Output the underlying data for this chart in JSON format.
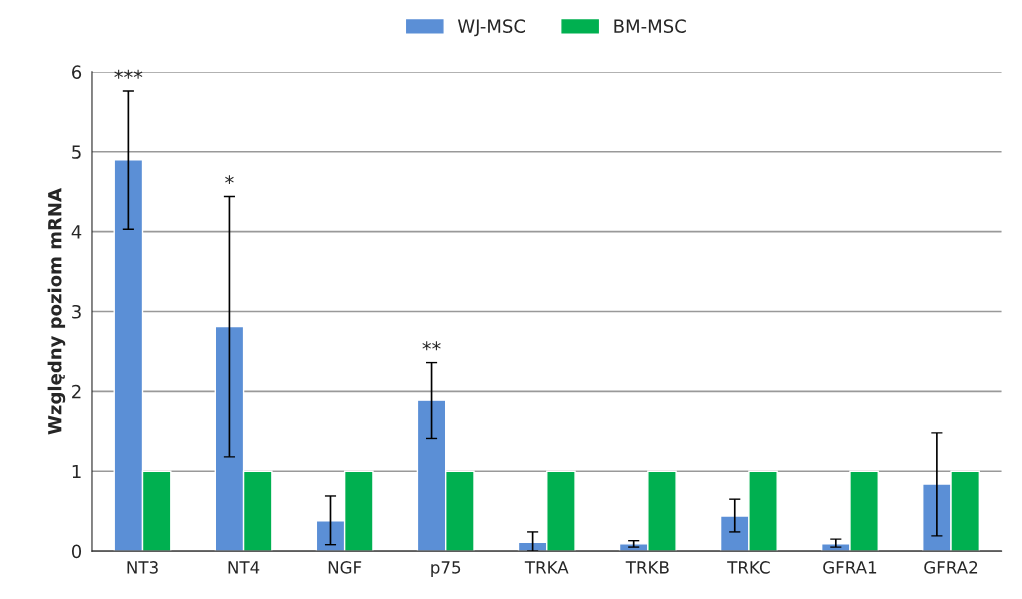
{
  "chart_data": {
    "type": "bar",
    "ylabel": "Względny poziom mRNA",
    "categories": [
      "NT3",
      "NT4",
      "NGF",
      "p75",
      "TRKA",
      "TRKB",
      "TRKC",
      "GFRA1",
      "GFRA2"
    ],
    "series": [
      {
        "name": "WJ-MSC",
        "color": "#5b8fd6",
        "values": [
          4.9,
          2.81,
          0.38,
          1.89,
          0.11,
          0.09,
          0.44,
          0.09,
          0.84
        ],
        "errors": [
          [
            4.03,
            5.76
          ],
          [
            1.18,
            4.44
          ],
          [
            0.08,
            0.69
          ],
          [
            1.41,
            2.36
          ],
          [
            0.0,
            0.24
          ],
          [
            0.05,
            0.13
          ],
          [
            0.24,
            0.65
          ],
          [
            0.05,
            0.15
          ],
          [
            0.19,
            1.48
          ]
        ]
      },
      {
        "name": "BM-MSC",
        "color": "#00b050",
        "values": [
          1,
          1,
          1,
          1,
          1,
          1,
          1,
          1,
          1
        ]
      }
    ],
    "annotations": [
      "***",
      "*",
      "**"
    ],
    "ylim": [
      0,
      6
    ],
    "yticks": [
      0,
      1,
      2,
      3,
      4,
      5,
      6
    ],
    "grid": "y",
    "legend": "top"
  }
}
